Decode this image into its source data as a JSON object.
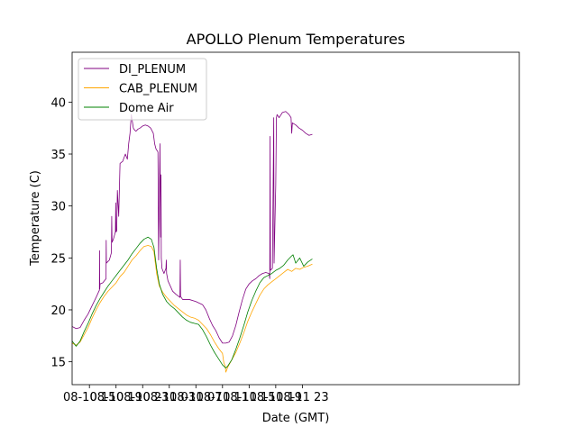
{
  "chart_data": {
    "type": "line",
    "title": "APOLLO Plenum Temperatures",
    "xlabel": "Date (GMT)",
    "ylabel": "Temperature (C)",
    "xlim": [
      12.4,
      79.6
    ],
    "ylim": [
      12.8,
      44.8
    ],
    "grid": false,
    "legend_position": "top-left",
    "x_unit": "hours since 08-10 00:00 GMT",
    "x_ticks": [
      {
        "value": 15,
        "label": "08-10 15"
      },
      {
        "value": 19,
        "label": "08-10 19"
      },
      {
        "value": 23,
        "label": "08-10 23"
      },
      {
        "value": 27,
        "label": "08-11 03"
      },
      {
        "value": 31,
        "label": "08-11 07"
      },
      {
        "value": 35,
        "label": "08-11 11"
      },
      {
        "value": 39,
        "label": "08-11 15"
      },
      {
        "value": 43,
        "label": "08-11 19"
      },
      {
        "value": 47,
        "label": "08-11 23"
      }
    ],
    "y_ticks": [
      {
        "value": 15,
        "label": "15"
      },
      {
        "value": 20,
        "label": "20"
      },
      {
        "value": 25,
        "label": "25"
      },
      {
        "value": 30,
        "label": "30"
      },
      {
        "value": 35,
        "label": "35"
      },
      {
        "value": 40,
        "label": "40"
      }
    ],
    "series": [
      {
        "name": "DI_PLENUM",
        "color": "#800080",
        "x": [
          12.4,
          13.0,
          13.6,
          14.2,
          14.8,
          15.4,
          16.0,
          16.5,
          16.52,
          16.55,
          16.6,
          17.0,
          17.5,
          17.52,
          17.55,
          18.0,
          18.3,
          18.35,
          18.4,
          18.6,
          18.9,
          18.95,
          19.0,
          19.1,
          19.2,
          19.4,
          19.6,
          20.0,
          20.4,
          20.7,
          20.9,
          21.1,
          21.3,
          21.6,
          21.8,
          22.0,
          22.3,
          22.6,
          23.0,
          23.4,
          23.8,
          24.2,
          24.6,
          24.8,
          25.0,
          25.3,
          25.4,
          25.6,
          25.7,
          25.75,
          25.8,
          25.9,
          26.2,
          26.5,
          26.55,
          26.6,
          26.8,
          27.5,
          28.0,
          28.4,
          28.6,
          28.65,
          28.7,
          29.0,
          30.0,
          31.0,
          32.0,
          32.5,
          33.0,
          33.5,
          34.0,
          34.5,
          35.0,
          35.5,
          36.0,
          36.5,
          37.0,
          37.5,
          38.0,
          38.5,
          39.0,
          39.5,
          40.0,
          40.5,
          41.0,
          41.5,
          42.0,
          42.1,
          42.15,
          42.2,
          42.5,
          42.7,
          42.75,
          42.8,
          43.0,
          43.1,
          43.2,
          43.5,
          44.0,
          44.5,
          45.0,
          45.3,
          45.4,
          45.5,
          46.0,
          46.5,
          47.0,
          47.5,
          48.0,
          48.5
        ],
        "values": [
          18.4,
          18.2,
          18.3,
          19.0,
          19.6,
          20.4,
          21.2,
          21.9,
          25.7,
          22.0,
          22.5,
          22.6,
          23.0,
          26.7,
          24.5,
          24.8,
          25.5,
          29.0,
          26.5,
          26.8,
          27.5,
          30.3,
          27.5,
          27.6,
          31.5,
          29.0,
          34.1,
          34.3,
          35.0,
          34.5,
          36.0,
          37.0,
          38.8,
          37.5,
          37.3,
          37.2,
          37.4,
          37.5,
          37.7,
          37.8,
          37.7,
          37.5,
          37.0,
          36.0,
          35.5,
          35.2,
          24.8,
          36.0,
          27.0,
          33.0,
          25.0,
          24.0,
          23.5,
          24.0,
          24.8,
          23.5,
          22.8,
          21.8,
          21.5,
          21.3,
          21.2,
          24.8,
          21.3,
          21.0,
          21.0,
          20.8,
          20.5,
          20.0,
          19.2,
          18.5,
          18.0,
          17.3,
          16.8,
          16.8,
          16.9,
          17.5,
          18.5,
          19.8,
          21.0,
          22.0,
          22.5,
          22.8,
          23.0,
          23.3,
          23.5,
          23.6,
          23.5,
          23.0,
          36.7,
          23.8,
          24.0,
          38.5,
          24.5,
          26.0,
          32.0,
          38.5,
          38.8,
          38.5,
          39.0,
          39.1,
          38.8,
          38.5,
          37.0,
          38.0,
          37.8,
          37.5,
          37.3,
          37.0,
          36.8,
          36.9
        ]
      },
      {
        "name": "CAB_PLENUM",
        "color": "#ffa500",
        "x": [
          12.4,
          13.0,
          13.6,
          14.2,
          14.8,
          15.4,
          16.0,
          16.6,
          17.2,
          17.8,
          18.4,
          19.0,
          19.6,
          20.2,
          20.8,
          21.4,
          22.0,
          22.6,
          23.2,
          23.8,
          24.3,
          24.7,
          25.1,
          25.5,
          26.0,
          26.6,
          27.2,
          27.8,
          28.4,
          29.0,
          29.6,
          30.2,
          30.8,
          31.4,
          32.0,
          32.6,
          33.2,
          33.8,
          34.4,
          35.0,
          35.2,
          35.4,
          35.5,
          35.8,
          36.4,
          37.0,
          37.6,
          38.2,
          38.8,
          39.4,
          40.0,
          40.6,
          41.2,
          41.8,
          42.4,
          43.0,
          43.6,
          44.2,
          44.8,
          45.4,
          46.0,
          46.6,
          47.2,
          47.8,
          48.5
        ],
        "values": [
          16.8,
          16.6,
          16.9,
          17.6,
          18.3,
          19.2,
          20.0,
          20.7,
          21.3,
          21.8,
          22.2,
          22.6,
          23.2,
          23.6,
          24.2,
          24.8,
          25.2,
          25.7,
          26.1,
          26.2,
          26.1,
          25.6,
          23.5,
          22.3,
          21.7,
          21.2,
          20.8,
          20.4,
          20.1,
          19.8,
          19.5,
          19.3,
          19.2,
          19.0,
          18.6,
          18.2,
          17.6,
          16.9,
          16.3,
          15.8,
          14.9,
          14.6,
          14.0,
          14.5,
          15.2,
          15.9,
          16.8,
          17.8,
          18.9,
          19.8,
          20.6,
          21.4,
          22.0,
          22.4,
          22.7,
          23.0,
          23.3,
          23.6,
          23.9,
          23.7,
          24.0,
          23.9,
          24.1,
          24.2,
          24.4
        ]
      },
      {
        "name": "Dome Air",
        "color": "#008000",
        "x": [
          12.4,
          13.0,
          13.6,
          14.2,
          14.8,
          15.4,
          16.0,
          16.6,
          17.2,
          17.8,
          18.4,
          19.0,
          19.6,
          20.2,
          20.8,
          21.4,
          22.0,
          22.6,
          23.2,
          23.8,
          24.3,
          24.7,
          25.1,
          25.5,
          26.0,
          26.6,
          27.2,
          27.8,
          28.4,
          29.0,
          29.6,
          30.2,
          30.8,
          31.4,
          32.0,
          32.6,
          33.2,
          33.8,
          34.4,
          35.0,
          35.5,
          35.8,
          36.4,
          37.0,
          37.6,
          38.2,
          38.8,
          39.4,
          40.0,
          40.6,
          41.2,
          41.8,
          42.4,
          43.0,
          43.6,
          44.2,
          44.8,
          45.4,
          45.6,
          46.0,
          46.6,
          47.2,
          47.8,
          48.5
        ],
        "values": [
          17.0,
          16.5,
          17.0,
          17.9,
          18.7,
          19.6,
          20.4,
          21.1,
          21.7,
          22.3,
          22.8,
          23.3,
          23.8,
          24.3,
          24.8,
          25.4,
          25.9,
          26.4,
          26.8,
          27.0,
          26.8,
          26.0,
          24.0,
          22.5,
          21.5,
          20.8,
          20.4,
          20.1,
          19.7,
          19.3,
          19.0,
          18.8,
          18.7,
          18.6,
          18.1,
          17.4,
          16.6,
          15.9,
          15.3,
          14.7,
          14.4,
          14.6,
          15.2,
          16.2,
          17.3,
          18.5,
          19.8,
          20.9,
          21.8,
          22.6,
          23.1,
          23.3,
          23.5,
          23.8,
          24.0,
          24.3,
          24.8,
          25.2,
          25.3,
          24.5,
          25.0,
          24.2,
          24.6,
          24.9
        ]
      }
    ]
  }
}
